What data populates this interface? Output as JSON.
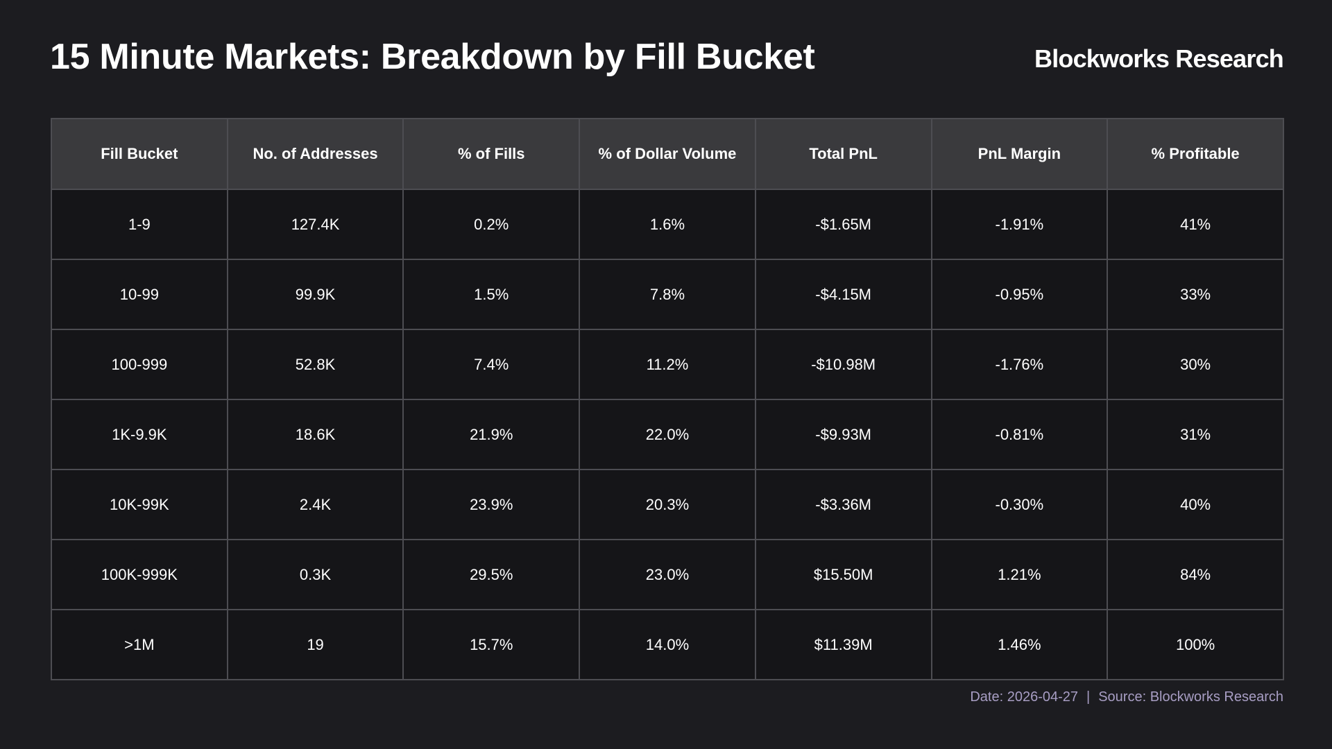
{
  "header": {
    "title": "15 Minute Markets: Breakdown by Fill Bucket",
    "brand": "Blockworks Research"
  },
  "footer": {
    "date": "Date: 2026-04-27",
    "separator": "|",
    "source": "Source: Blockworks Research"
  },
  "colors": {
    "background": "#1c1c20",
    "header_row": "#3a3a3d",
    "cell": "#151518",
    "grid": "#4d4d52",
    "footer_text": "#a89ec4"
  },
  "chart_data": {
    "type": "table",
    "title": "15 Minute Markets: Breakdown by Fill Bucket",
    "columns": [
      "Fill Bucket",
      "No. of Addresses",
      "% of Fills",
      "% of Dollar Volume",
      "Total PnL",
      "PnL Margin",
      "% Profitable"
    ],
    "rows": [
      [
        "1-9",
        "127.4K",
        "0.2%",
        "1.6%",
        "-$1.65M",
        "-1.91%",
        "41%"
      ],
      [
        "10-99",
        "99.9K",
        "1.5%",
        "7.8%",
        "-$4.15M",
        "-0.95%",
        "33%"
      ],
      [
        "100-999",
        "52.8K",
        "7.4%",
        "11.2%",
        "-$10.98M",
        "-1.76%",
        "30%"
      ],
      [
        "1K-9.9K",
        "18.6K",
        "21.9%",
        "22.0%",
        "-$9.93M",
        "-0.81%",
        "31%"
      ],
      [
        "10K-99K",
        "2.4K",
        "23.9%",
        "20.3%",
        "-$3.36M",
        "-0.30%",
        "40%"
      ],
      [
        "100K-999K",
        "0.3K",
        "29.5%",
        "23.0%",
        "$15.50M",
        "1.21%",
        "84%"
      ],
      [
        ">1M",
        "19",
        "15.7%",
        "14.0%",
        "$11.39M",
        "1.46%",
        "100%"
      ]
    ]
  }
}
